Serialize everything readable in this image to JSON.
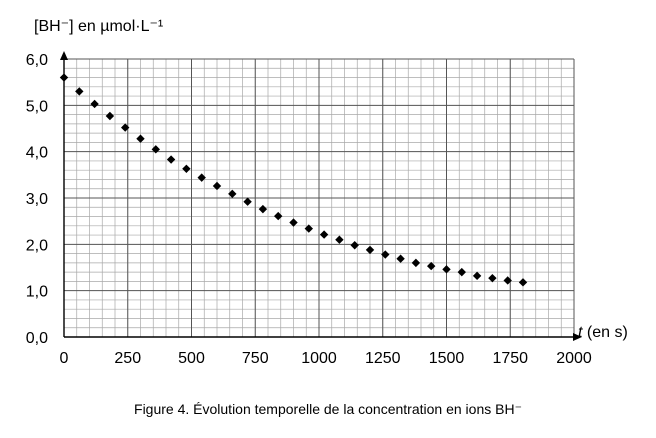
{
  "chart_data": {
    "type": "scatter",
    "ylabel": "[BH⁻] en µmol·L⁻¹",
    "xlabel_var": "t",
    "xlabel_unit": " (en s)",
    "xlim": [
      0,
      2000
    ],
    "ylim": [
      0,
      6
    ],
    "grid": true,
    "x_ticks": [
      "0",
      "250",
      "500",
      "750",
      "1000",
      "1250",
      "1500",
      "1750",
      "2000"
    ],
    "y_ticks": [
      "0,0",
      "1,0",
      "2,0",
      "3,0",
      "4,0",
      "5,0",
      "6,0"
    ],
    "series": [
      {
        "x": [
          0,
          60,
          120,
          180,
          240,
          300,
          360,
          420,
          480,
          540,
          600,
          660,
          720,
          780,
          840,
          900,
          960,
          1020,
          1080,
          1140,
          1200,
          1260,
          1320,
          1380,
          1440,
          1500,
          1560,
          1620,
          1680,
          1740,
          1800
        ],
        "y": [
          5.6,
          5.3,
          5.03,
          4.77,
          4.52,
          4.28,
          4.05,
          3.83,
          3.63,
          3.44,
          3.26,
          3.09,
          2.92,
          2.76,
          2.61,
          2.47,
          2.34,
          2.21,
          2.1,
          1.98,
          1.88,
          1.78,
          1.69,
          1.6,
          1.53,
          1.46,
          1.4,
          1.32,
          1.27,
          1.22,
          1.18
        ]
      }
    ]
  },
  "caption": "Figure 4. Évolution temporelle de la concentration en ions BH⁻"
}
